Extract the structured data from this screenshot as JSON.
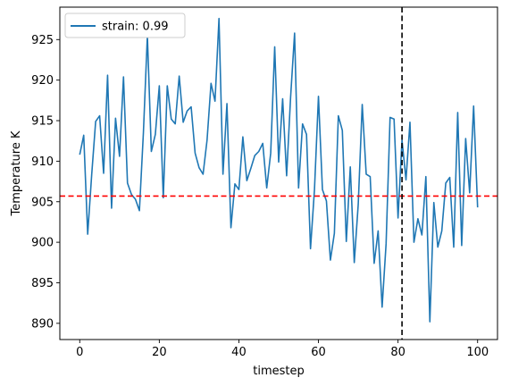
{
  "chart_data": {
    "type": "line",
    "xlabel": "timestep",
    "ylabel": "Temperature K",
    "xlim": [
      -5,
      105
    ],
    "ylim": [
      888,
      929
    ],
    "xticks": [
      0,
      20,
      40,
      60,
      80,
      100
    ],
    "yticks": [
      890,
      895,
      900,
      905,
      910,
      915,
      920,
      925
    ],
    "grid": false,
    "legend_position": "top-left",
    "series": [
      {
        "name": "strain: 0.99",
        "color": "#1f77b4",
        "x": [
          0,
          1,
          2,
          3,
          4,
          5,
          6,
          7,
          8,
          9,
          10,
          11,
          12,
          13,
          14,
          15,
          16,
          17,
          18,
          19,
          20,
          21,
          22,
          23,
          24,
          25,
          26,
          27,
          28,
          29,
          30,
          31,
          32,
          33,
          34,
          35,
          36,
          37,
          38,
          39,
          40,
          41,
          42,
          43,
          44,
          45,
          46,
          47,
          48,
          49,
          50,
          51,
          52,
          53,
          54,
          55,
          56,
          57,
          58,
          59,
          60,
          61,
          62,
          63,
          64,
          65,
          66,
          67,
          68,
          69,
          70,
          71,
          72,
          73,
          74,
          75,
          76,
          77,
          78,
          79,
          80,
          81,
          82,
          83,
          84,
          85,
          86,
          87,
          88,
          89,
          90,
          91,
          92,
          93,
          94,
          95,
          96,
          97,
          98,
          99,
          100
        ],
        "y": [
          910.8,
          913.2,
          901.0,
          908.3,
          914.9,
          915.6,
          908.5,
          920.6,
          904.2,
          915.3,
          910.6,
          920.4,
          907.3,
          905.9,
          905.3,
          903.9,
          913.5,
          925.5,
          911.2,
          913.3,
          919.3,
          905.5,
          919.3,
          915.2,
          914.6,
          920.5,
          914.8,
          916.2,
          916.7,
          911.0,
          909.2,
          908.4,
          912.6,
          919.6,
          917.4,
          927.6,
          908.4,
          917.1,
          901.8,
          907.2,
          906.5,
          913.0,
          907.6,
          909.1,
          910.7,
          911.2,
          912.2,
          906.7,
          911.0,
          924.1,
          909.9,
          917.7,
          908.2,
          917.9,
          925.8,
          906.7,
          914.6,
          913.3,
          899.2,
          906.5,
          918.0,
          906.5,
          905.1,
          897.8,
          901.1,
          915.6,
          913.8,
          900.1,
          909.3,
          897.5,
          904.7,
          917.0,
          908.4,
          908.1,
          897.4,
          901.4,
          892.0,
          899.8,
          915.4,
          915.2,
          903.0,
          912.6,
          907.7,
          914.8,
          900.0,
          902.9,
          900.9,
          908.1,
          890.2,
          904.9,
          899.4,
          901.4,
          907.3,
          908.0,
          899.4,
          916.0,
          899.6,
          912.8,
          906.1,
          916.8,
          904.3
        ]
      }
    ],
    "hline": {
      "y": 905.7,
      "color": "#ff0000",
      "style": "dashed"
    },
    "vline": {
      "x": 81,
      "color": "#000000",
      "style": "dashed"
    }
  }
}
